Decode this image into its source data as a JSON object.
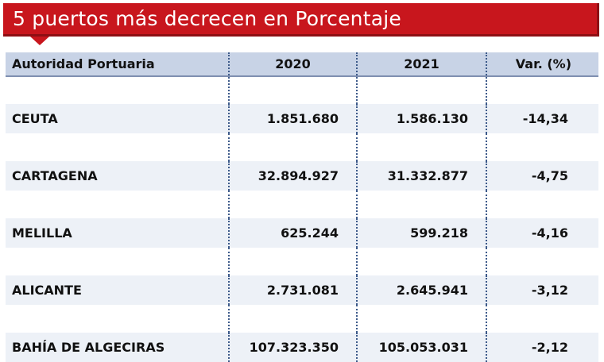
{
  "title": "5 puertos más decrecen en Porcentaje",
  "table": {
    "headers": [
      "Autoridad Portuaria",
      "2020",
      "2021",
      "Var. (%)"
    ],
    "rows": [
      {
        "port": "CEUTA",
        "y2020": "1.851.680",
        "y2021": "1.586.130",
        "var": "-14,34"
      },
      {
        "port": "CARTAGENA",
        "y2020": "32.894.927",
        "y2021": "31.332.877",
        "var": "-4,75"
      },
      {
        "port": "MELILLA",
        "y2020": "625.244",
        "y2021": "599.218",
        "var": "-4,16"
      },
      {
        "port": "ALICANTE",
        "y2020": "2.731.081",
        "y2021": "2.645.941",
        "var": "-3,12"
      },
      {
        "port": "BAHÍA DE ALGECIRAS",
        "y2020": "107.323.350",
        "y2021": "105.053.031",
        "var": "-2,12"
      }
    ]
  },
  "colors": {
    "title_background": "#c8161d",
    "header_background": "#c8d3e6",
    "row_background": "#edf1f7",
    "separator": "#3d5a8a"
  }
}
